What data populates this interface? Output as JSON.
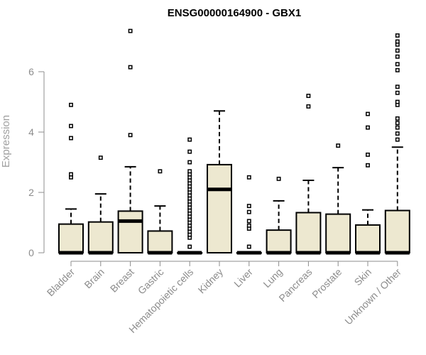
{
  "chart_data": {
    "type": "boxplot",
    "title": "ENSG00000164900 - GBX1",
    "ylabel": "Expression",
    "xlabel": "",
    "ylim": [
      0,
      7.6
    ],
    "yticks": [
      0,
      2,
      4,
      6
    ],
    "grid": false,
    "legend": "none",
    "box_fill": "#ede8d0",
    "categories": [
      "Bladder",
      "Brain",
      "Breast",
      "Gastric",
      "Hematopoietic cells",
      "Kidney",
      "Liver",
      "Lung",
      "Pancreas",
      "Prostate",
      "Skin",
      "Unknown / Other"
    ],
    "boxes": [
      {
        "category": "Bladder",
        "min": 0,
        "q1": 0,
        "median": 0,
        "q3": 0.95,
        "max": 1.45,
        "outliers": [
          2.5,
          2.6,
          3.8,
          4.2,
          4.9
        ]
      },
      {
        "category": "Brain",
        "min": 0,
        "q1": 0,
        "median": 0,
        "q3": 1.02,
        "max": 1.95,
        "outliers": [
          3.15
        ]
      },
      {
        "category": "Breast",
        "min": 0,
        "q1": 0,
        "median": 1.05,
        "q3": 1.38,
        "max": 2.85,
        "outliers": [
          3.9,
          6.15,
          7.35
        ]
      },
      {
        "category": "Gastric",
        "min": 0,
        "q1": 0,
        "median": 0,
        "q3": 0.72,
        "max": 1.55,
        "outliers": [
          2.7
        ]
      },
      {
        "category": "Hematopoietic cells",
        "min": 0,
        "q1": 0,
        "median": 0,
        "q3": 0,
        "max": 0,
        "outliers": [
          0.2,
          0.5,
          0.6,
          0.7,
          0.8,
          0.9,
          1.0,
          1.1,
          1.2,
          1.3,
          1.4,
          1.5,
          1.6,
          1.7,
          1.8,
          1.9,
          2.0,
          2.1,
          2.2,
          2.3,
          2.4,
          2.5,
          2.6,
          2.7,
          3.0,
          3.35,
          3.75
        ]
      },
      {
        "category": "Kidney",
        "min": 0,
        "q1": 0,
        "median": 2.1,
        "q3": 2.92,
        "max": 4.7,
        "outliers": []
      },
      {
        "category": "Liver",
        "min": 0,
        "q1": 0,
        "median": 0,
        "q3": 0,
        "max": 0,
        "outliers": [
          0.2,
          0.8,
          0.9,
          1.05,
          1.35,
          1.55,
          2.5
        ]
      },
      {
        "category": "Lung",
        "min": 0,
        "q1": 0,
        "median": 0,
        "q3": 0.75,
        "max": 1.72,
        "outliers": [
          2.45
        ]
      },
      {
        "category": "Pancreas",
        "min": 0,
        "q1": 0,
        "median": 0,
        "q3": 1.33,
        "max": 2.4,
        "outliers": [
          4.85,
          5.2
        ]
      },
      {
        "category": "Prostate",
        "min": 0,
        "q1": 0,
        "median": 0,
        "q3": 1.28,
        "max": 2.82,
        "outliers": [
          3.55
        ]
      },
      {
        "category": "Skin",
        "min": 0,
        "q1": 0,
        "median": 0,
        "q3": 0.92,
        "max": 1.42,
        "outliers": [
          2.9,
          3.25,
          4.15,
          4.6
        ]
      },
      {
        "category": "Unknown / Other",
        "min": 0,
        "q1": 0,
        "median": 0,
        "q3": 1.4,
        "max": 3.5,
        "outliers": [
          3.75,
          3.95,
          4.15,
          4.3,
          4.45,
          4.9,
          5.0,
          5.3,
          5.5,
          6.05,
          6.25,
          6.5,
          6.7,
          6.9,
          7.0,
          7.2
        ]
      }
    ]
  }
}
